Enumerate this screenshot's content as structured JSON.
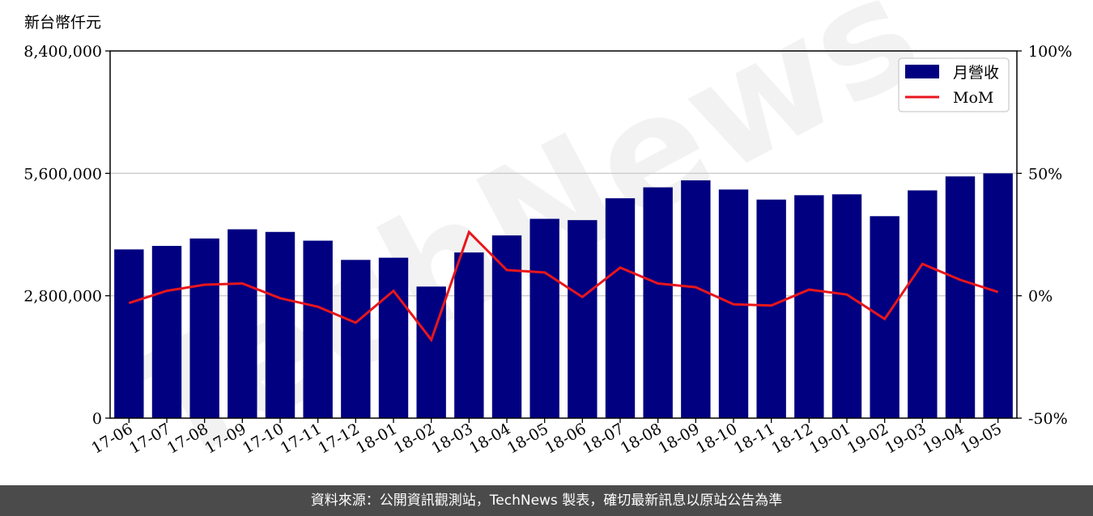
{
  "chart_data": {
    "type": "bar",
    "y_unit_label": "新台幣仟元",
    "categories": [
      "17-06",
      "17-07",
      "17-08",
      "17-09",
      "17-10",
      "17-11",
      "17-12",
      "18-01",
      "18-02",
      "18-03",
      "18-04",
      "18-05",
      "18-06",
      "18-07",
      "18-08",
      "18-09",
      "18-10",
      "18-11",
      "18-12",
      "19-01",
      "19-02",
      "19-03",
      "19-04",
      "19-05"
    ],
    "series": [
      {
        "name": "月營收",
        "type": "bar",
        "axis": "left",
        "color": "#000080",
        "values": [
          3860000,
          3940000,
          4110000,
          4320000,
          4260000,
          4060000,
          3620000,
          3670000,
          3010000,
          3790000,
          4180000,
          4560000,
          4530000,
          5030000,
          5280000,
          5440000,
          5230000,
          5000000,
          5100000,
          5120000,
          4620000,
          5210000,
          5530000,
          5600000
        ]
      },
      {
        "name": "MoM",
        "type": "line",
        "axis": "right",
        "color": "#e8161c",
        "values": [
          -3,
          2,
          4.5,
          5,
          -1,
          -4.5,
          -11,
          2,
          -18,
          26,
          10.5,
          9.5,
          -0.5,
          11.5,
          5,
          3.5,
          -3.5,
          -4,
          2.5,
          0.5,
          -9.5,
          13,
          6.5,
          1.5
        ]
      }
    ],
    "ylim_left": [
      0,
      8400000
    ],
    "yticks_left": [
      "0",
      "2,800,000",
      "5,600,000",
      "8,400,000"
    ],
    "ylim_right": [
      -50,
      100
    ],
    "yticks_right": [
      "-50%",
      "0%",
      "50%",
      "100%"
    ],
    "grid": "horizontal",
    "legend_position": "top-right"
  },
  "watermark": "TechNews",
  "footer_text": "資料來源：公開資訊觀測站，TechNews 製表，確切最新訊息以原站公告為準"
}
